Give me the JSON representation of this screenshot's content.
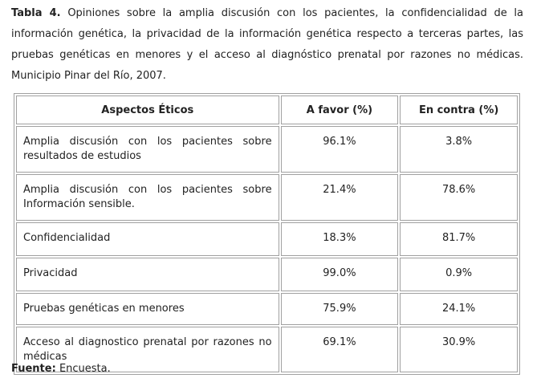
{
  "caption": {
    "label": "Tabla 4.",
    "text": "Opiniones sobre la amplia discusión con los pacientes, la confidencialidad de la información genética, la privacidad de la información genética respecto a terceras partes, las pruebas genéticas en menores y el acceso al diagnóstico prenatal por razones no médicas. Municipio Pinar del Río, 2007."
  },
  "table": {
    "header": [
      "Aspectos Éticos",
      "A favor (%)",
      "En contra (%)"
    ],
    "rows": [
      [
        "Amplia discusión con los pacientes sobre resultados de estudios",
        "96.1%",
        "3.8%"
      ],
      [
        "Amplia discusión con los pacientes sobre Información sensible.",
        "21.4%",
        "78.6%"
      ],
      [
        "Confidencialidad",
        "18.3%",
        "81.7%"
      ],
      [
        "Privacidad",
        "99.0%",
        "0.9%"
      ],
      [
        "Pruebas genéticas en menores",
        "75.9%",
        "24.1%"
      ],
      [
        "Acceso al diagnostico prenatal por razones no médicas",
        "69.1%",
        "30.9%"
      ]
    ]
  },
  "footer": {
    "label": "Fuente:",
    "text": "Encuesta."
  }
}
